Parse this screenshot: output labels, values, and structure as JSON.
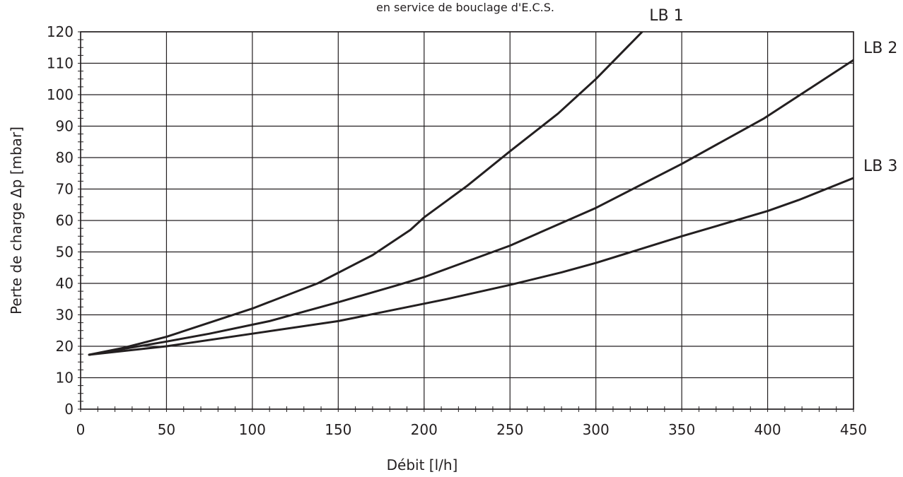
{
  "chart_data": {
    "type": "line",
    "title": "en service de bouclage d'E.C.S.",
    "xlabel": "Débit [l/h]",
    "ylabel": "Perte de charge  Δp [mbar]",
    "xlim": [
      0,
      450
    ],
    "ylim": [
      0,
      120
    ],
    "x_ticks": [
      0,
      50,
      100,
      150,
      200,
      250,
      300,
      350,
      400,
      450
    ],
    "y_ticks": [
      0,
      10,
      20,
      30,
      40,
      50,
      60,
      70,
      80,
      90,
      100,
      110,
      120
    ],
    "grid": true,
    "line_color": "#231f20",
    "series": [
      {
        "name": "LB 1",
        "points": [
          [
            5,
            17.3
          ],
          [
            25,
            19.5
          ],
          [
            50,
            23
          ],
          [
            75,
            27.5
          ],
          [
            100,
            32
          ],
          [
            138,
            40
          ],
          [
            170,
            49
          ],
          [
            192,
            57
          ],
          [
            200,
            61
          ],
          [
            225,
            71
          ],
          [
            250,
            82
          ],
          [
            278,
            94
          ],
          [
            300,
            105
          ],
          [
            327,
            120
          ]
        ]
      },
      {
        "name": "LB 2",
        "points": [
          [
            5,
            17.3
          ],
          [
            50,
            21.5
          ],
          [
            75,
            24
          ],
          [
            110,
            28
          ],
          [
            150,
            34
          ],
          [
            185,
            39.5
          ],
          [
            200,
            42
          ],
          [
            250,
            52
          ],
          [
            300,
            64
          ],
          [
            350,
            78
          ],
          [
            398,
            92.5
          ],
          [
            450,
            111
          ]
        ]
      },
      {
        "name": "LB 3",
        "points": [
          [
            5,
            17.3
          ],
          [
            50,
            20
          ],
          [
            100,
            24
          ],
          [
            150,
            28
          ],
          [
            213,
            35
          ],
          [
            250,
            39.5
          ],
          [
            280,
            43.5
          ],
          [
            300,
            46.5
          ],
          [
            350,
            55
          ],
          [
            400,
            63
          ],
          [
            418,
            66.5
          ],
          [
            450,
            73.5
          ]
        ]
      }
    ]
  }
}
